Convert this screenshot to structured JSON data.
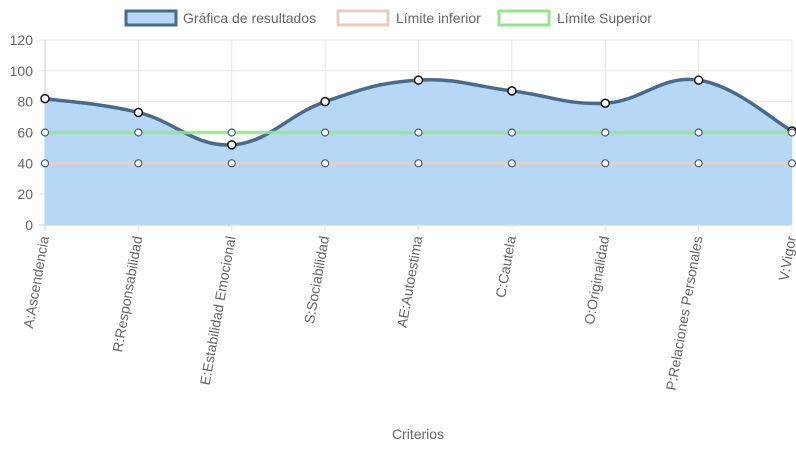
{
  "chart_data": {
    "type": "line",
    "xlabel": "Criterios",
    "ylabel": "",
    "ylim": [
      0,
      120
    ],
    "yticks": [
      0,
      20,
      40,
      60,
      80,
      100,
      120
    ],
    "grid": true,
    "legend": "top-center",
    "categories": [
      "A:Ascendencia",
      "R:Responsabilidad",
      "E:Estabilidad Emocional",
      "S:Sociabilidad",
      "AE:Autoestima",
      "C:Cautela",
      "O:Originalidad",
      "P:Relaciones Personales",
      "V:Vigor"
    ],
    "series": [
      {
        "name": "Gráfica de resultados",
        "values": [
          82,
          73,
          52,
          80,
          94,
          87,
          79,
          94,
          61
        ],
        "color": "#4a6a8c",
        "fill": "#b7d7f7",
        "filled": true
      },
      {
        "name": "Límite inferior",
        "values": [
          40,
          40,
          40,
          40,
          40,
          40,
          40,
          40,
          40
        ],
        "color": "#e4cfc4",
        "filled": false
      },
      {
        "name": "Límite Superior",
        "values": [
          60,
          60,
          60,
          60,
          60,
          60,
          60,
          60,
          60
        ],
        "color": "#98e38f",
        "filled": false
      }
    ]
  }
}
